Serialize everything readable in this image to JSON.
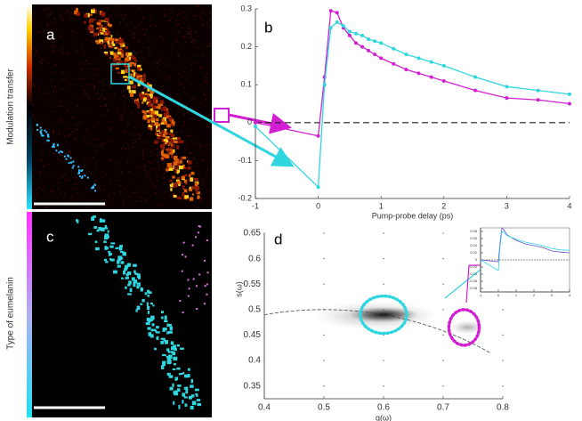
{
  "chart_data": [
    {
      "type": "image",
      "label": "a",
      "colorbar_label": "Modulation transfer"
    },
    {
      "type": "line",
      "label": "b",
      "xlabel": "Pump-probe delay (ps)",
      "x": [
        -1,
        0,
        0.1,
        0.2,
        0.3,
        0.4,
        0.5,
        0.6,
        0.7,
        0.8,
        0.9,
        1.0,
        1.2,
        1.4,
        1.6,
        1.8,
        2.0,
        2.5,
        3.0,
        3.5,
        4.0
      ],
      "series": [
        {
          "color": "#d21fd2",
          "values": [
            0.0,
            -0.035,
            0.12,
            0.295,
            0.29,
            0.25,
            0.23,
            0.21,
            0.2,
            0.19,
            0.18,
            0.17,
            0.155,
            0.14,
            0.13,
            0.12,
            0.11,
            0.085,
            0.065,
            0.06,
            0.05
          ]
        },
        {
          "color": "#2fd6e0",
          "values": [
            -0.01,
            -0.17,
            0.1,
            0.25,
            0.265,
            0.255,
            0.24,
            0.235,
            0.23,
            0.22,
            0.215,
            0.21,
            0.195,
            0.18,
            0.17,
            0.16,
            0.15,
            0.12,
            0.095,
            0.085,
            0.075
          ]
        }
      ],
      "xlim": [
        -1,
        4
      ],
      "ylim": [
        -0.2,
        0.3
      ],
      "xticks": [
        -1,
        0,
        1,
        2,
        3,
        4
      ],
      "yticks": [
        -0.2,
        -0.1,
        0,
        0.1,
        0.2,
        0.3
      ],
      "hline": 0
    },
    {
      "type": "image",
      "label": "c",
      "colorbar_label": "Type of eumelanin"
    },
    {
      "type": "phasor",
      "label": "d",
      "xlabel": "g(ω)",
      "ylabel": "s(ω)",
      "xlim": [
        0.4,
        0.8
      ],
      "ylim": [
        0.325,
        0.65
      ],
      "xticks": [
        0.4,
        0.5,
        0.6,
        0.7,
        0.8
      ],
      "yticks": [
        0.35,
        0.4,
        0.45,
        0.5,
        0.55,
        0.6,
        0.65
      ],
      "clusters": [
        {
          "color": "#2fd6e0",
          "x": 0.6,
          "y": 0.49
        },
        {
          "color": "#d21fd2",
          "x": 0.735,
          "y": 0.465
        }
      ]
    },
    {
      "type": "line",
      "x": [
        -1,
        0,
        0.1,
        0.2,
        0.3,
        0.5,
        1,
        1.5,
        2,
        2.5,
        3,
        3.5,
        4
      ],
      "series": [
        {
          "color": "#6a4fd0",
          "values": [
            0,
            -0.005,
            0.05,
            0.09,
            0.085,
            0.07,
            0.055,
            0.045,
            0.04,
            0.035,
            0.025,
            0.022,
            0.02
          ]
        },
        {
          "color": "#2fd6e0",
          "values": [
            0,
            -0.03,
            0.04,
            0.08,
            0.078,
            0.068,
            0.058,
            0.05,
            0.045,
            0.04,
            0.032,
            0.028,
            0.027
          ]
        }
      ],
      "xlim": [
        -1,
        4
      ],
      "ylim": [
        -0.09,
        0.09
      ],
      "xticks": [
        -1,
        0,
        1,
        2,
        3,
        4
      ],
      "yticks": [
        -0.08,
        -0.06,
        -0.04,
        -0.02,
        0,
        0.02,
        0.04,
        0.06,
        0.08
      ],
      "hline": 0
    }
  ]
}
